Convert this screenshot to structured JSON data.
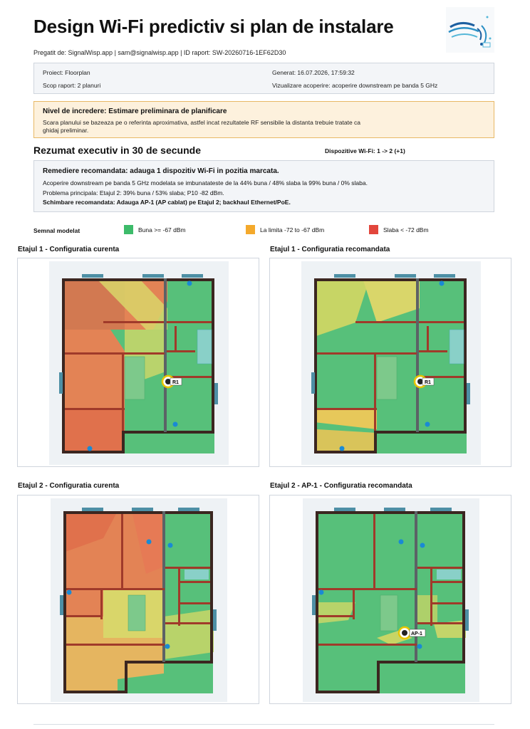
{
  "header": {
    "title": "Design Wi-Fi predictiv si plan de instalare",
    "prepared_by": "Pregatit de: SignalWisp.app | sam@signalwisp.app | ID raport: SW-20260716-1EF62D30"
  },
  "info": {
    "project": "Proiect: Floorplan",
    "generated": "Generat: 16.07.2026, 17:59:32",
    "scope": "Scop raport: 2 planuri",
    "coverage": "Vizualizare acoperire: acoperire downstream pe banda 5 GHz"
  },
  "confidence": {
    "heading": "Nivel de incredere: Estimare preliminara de planificare",
    "text": "Scara planului se bazeaza pe o referinta aproximativa, astfel incat rezultatele RF sensibile la distanta trebuie tratate ca ghidaj preliminar."
  },
  "summary": {
    "title": "Rezumat executiv in 30 de secunde",
    "devices": "Dispozitive Wi-Fi: 1 -> 2 (+1)",
    "remedy": "Remediere recomandata: adauga 1 dispozitiv Wi-Fi in pozitia marcata.",
    "coverage_line": "Acoperire downstream pe banda 5 GHz modelata se imbunatateste de la 44% buna / 48% slaba la 99% buna / 0% slaba.",
    "problem_line": "Problema principala: Etajul 2: 39% buna / 53% slaba; P10 -82 dBm.",
    "change_line": "Schimbare recomandata: Adauga AP-1 (AP cablat) pe Etajul 2; backhaul Ethernet/PoE."
  },
  "legend": {
    "title": "Semnal modelat",
    "items": [
      {
        "label": "Buna >= -67 dBm",
        "color": "#3dbb6a"
      },
      {
        "label": "La limita -72 to -67 dBm",
        "color": "#f4a92c"
      },
      {
        "label": "Slaba < -72 dBm",
        "color": "#e2463c"
      }
    ]
  },
  "panels": {
    "p1": {
      "title": "Etajul 1 - Configuratia curenta",
      "ap_label": "R1"
    },
    "p2": {
      "title": "Etajul 1 - Configuratia recomandata",
      "ap_label": "R1"
    },
    "p3": {
      "title": "Etajul 2 - Configuratia curenta"
    },
    "p4": {
      "title": "Etajul 2 - AP-1 - Configuratia recomandata",
      "ap_label": "AP-1"
    }
  },
  "colors": {
    "good": "#57c07a",
    "mid": "#d9d66a",
    "poor": "#e0714c",
    "wall": "#3b2620",
    "inner_wall": "#a03a2a",
    "window": "#4d8fa5",
    "ap_ring": "#e8c500"
  }
}
